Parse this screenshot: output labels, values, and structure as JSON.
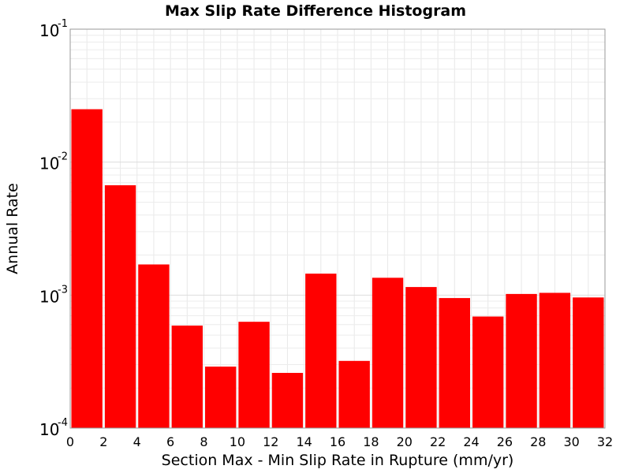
{
  "chart_data": {
    "type": "bar",
    "title": "Max Slip Rate Difference Histogram",
    "xlabel": "Section Max - Min Slip Rate in Rupture (mm/yr)",
    "ylabel": "Annual Rate",
    "xlim": [
      0,
      32
    ],
    "ylim": [
      0.0001,
      0.1
    ],
    "yscale": "log",
    "grid": true,
    "bar_color": "#ff0000",
    "bin_width": 2,
    "x_ticks": [
      "0",
      "2",
      "4",
      "6",
      "8",
      "10",
      "12",
      "14",
      "16",
      "18",
      "20",
      "22",
      "24",
      "26",
      "28",
      "30",
      "32"
    ],
    "y_ticks": [
      {
        "value": 0.0001,
        "base": "10",
        "exp": "-4"
      },
      {
        "value": 0.001,
        "base": "10",
        "exp": "-3"
      },
      {
        "value": 0.01,
        "base": "10",
        "exp": "-2"
      },
      {
        "value": 0.1,
        "base": "10",
        "exp": "-1"
      }
    ],
    "bins": [
      {
        "x": 1,
        "y": 0.025
      },
      {
        "x": 3,
        "y": 0.0067
      },
      {
        "x": 5,
        "y": 0.0017
      },
      {
        "x": 7,
        "y": 0.00059
      },
      {
        "x": 9,
        "y": 0.00029
      },
      {
        "x": 11,
        "y": 0.00063
      },
      {
        "x": 13,
        "y": 0.00026
      },
      {
        "x": 15,
        "y": 0.00145
      },
      {
        "x": 17,
        "y": 0.00032
      },
      {
        "x": 19,
        "y": 0.00135
      },
      {
        "x": 21,
        "y": 0.00115
      },
      {
        "x": 23,
        "y": 0.00095
      },
      {
        "x": 25,
        "y": 0.00069
      },
      {
        "x": 27,
        "y": 0.00102
      },
      {
        "x": 29,
        "y": 0.00104
      },
      {
        "x": 31,
        "y": 0.00096
      }
    ]
  }
}
